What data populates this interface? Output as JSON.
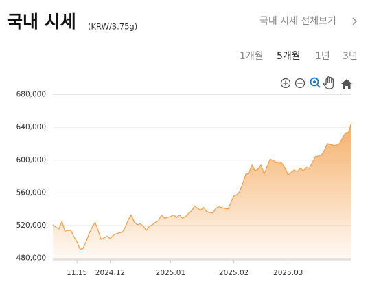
{
  "header": {
    "title": "국내 시세",
    "unit": "(KRW/3.75g)",
    "link": "국내 시세 전체보기"
  },
  "tabs": {
    "items": [
      "1개월",
      "5개월",
      "1년",
      "3년"
    ],
    "active": 1
  },
  "chart_data": {
    "type": "area",
    "color": "#f39c45",
    "categories": [
      null,
      null,
      null,
      null,
      null,
      null,
      null,
      null,
      "11.15",
      null,
      null,
      null,
      null,
      null,
      null,
      null,
      null,
      null,
      null,
      "2024.12",
      null,
      null,
      null,
      null,
      null,
      null,
      null,
      null,
      null,
      null,
      null,
      null,
      null,
      null,
      null,
      null,
      null,
      null,
      null,
      "2025.01",
      null,
      null,
      null,
      null,
      null,
      null,
      null,
      null,
      null,
      null,
      null,
      null,
      null,
      null,
      null,
      null,
      null,
      null,
      null,
      null,
      "2025.02",
      null,
      null,
      null,
      null,
      null,
      null,
      null,
      null,
      null,
      null,
      null,
      null,
      null,
      null,
      null,
      null,
      null,
      "2025.03",
      null,
      null,
      null,
      null,
      null,
      null,
      null,
      null,
      null,
      null,
      null,
      null,
      null,
      null,
      null,
      null,
      null,
      null,
      null,
      null,
      null
    ],
    "values": [
      521000,
      518000,
      516000,
      525000,
      513000,
      514000,
      514000,
      506000,
      500000,
      491000,
      492000,
      500000,
      510000,
      518000,
      524000,
      514000,
      503000,
      505000,
      507000,
      504000,
      508000,
      510000,
      511000,
      512000,
      518000,
      527000,
      533000,
      524000,
      521000,
      522000,
      519000,
      514000,
      519000,
      521000,
      524000,
      526000,
      533000,
      529000,
      530000,
      531000,
      533000,
      530000,
      533000,
      529000,
      531000,
      535000,
      538000,
      544000,
      541000,
      539000,
      542000,
      537000,
      536000,
      535000,
      541000,
      543000,
      542000,
      541000,
      540000,
      548000,
      556000,
      558000,
      562000,
      572000,
      583000,
      584000,
      594000,
      587000,
      589000,
      594000,
      583000,
      592000,
      601000,
      600000,
      597000,
      598000,
      596000,
      590000,
      582000,
      585000,
      588000,
      586000,
      590000,
      587000,
      591000,
      590000,
      597000,
      604000,
      605000,
      606000,
      612000,
      620000,
      619000,
      618000,
      618000,
      620000,
      627000,
      633000,
      634000,
      646000
    ],
    "ylim": [
      478000,
      688000
    ],
    "yticks": [
      {
        "value": 480000,
        "label": "480,000"
      },
      {
        "value": 520000,
        "label": "520,000"
      },
      {
        "value": 560000,
        "label": "560,000"
      },
      {
        "value": 600000,
        "label": "600,000"
      },
      {
        "value": 640000,
        "label": "640,000"
      },
      {
        "value": 680000,
        "label": "680,000"
      }
    ],
    "grid": true
  }
}
